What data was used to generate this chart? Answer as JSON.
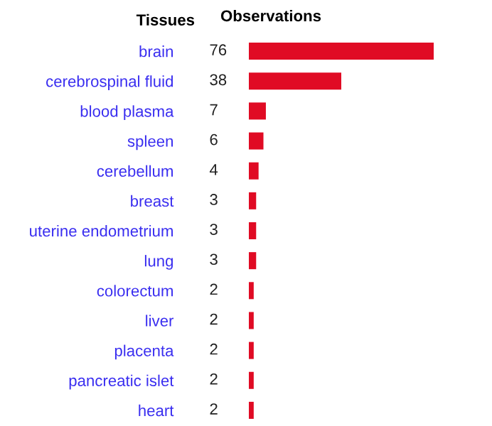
{
  "chart_data": {
    "type": "bar",
    "orientation": "horizontal",
    "ylabel": "Tissues",
    "xlabel": "Observations",
    "categories": [
      "brain",
      "cerebrospinal fluid",
      "blood plasma",
      "spleen",
      "cerebellum",
      "breast",
      "uterine endometrium",
      "lung",
      "colorectum",
      "liver",
      "placenta",
      "pancreatic islet",
      "heart"
    ],
    "values": [
      76,
      38,
      7,
      6,
      4,
      3,
      3,
      3,
      2,
      2,
      2,
      2,
      2
    ],
    "color": "#e00b24",
    "data_labels": true,
    "grid": false,
    "legend": false,
    "xlim": [
      0,
      76
    ],
    "tick_labels": "y"
  }
}
